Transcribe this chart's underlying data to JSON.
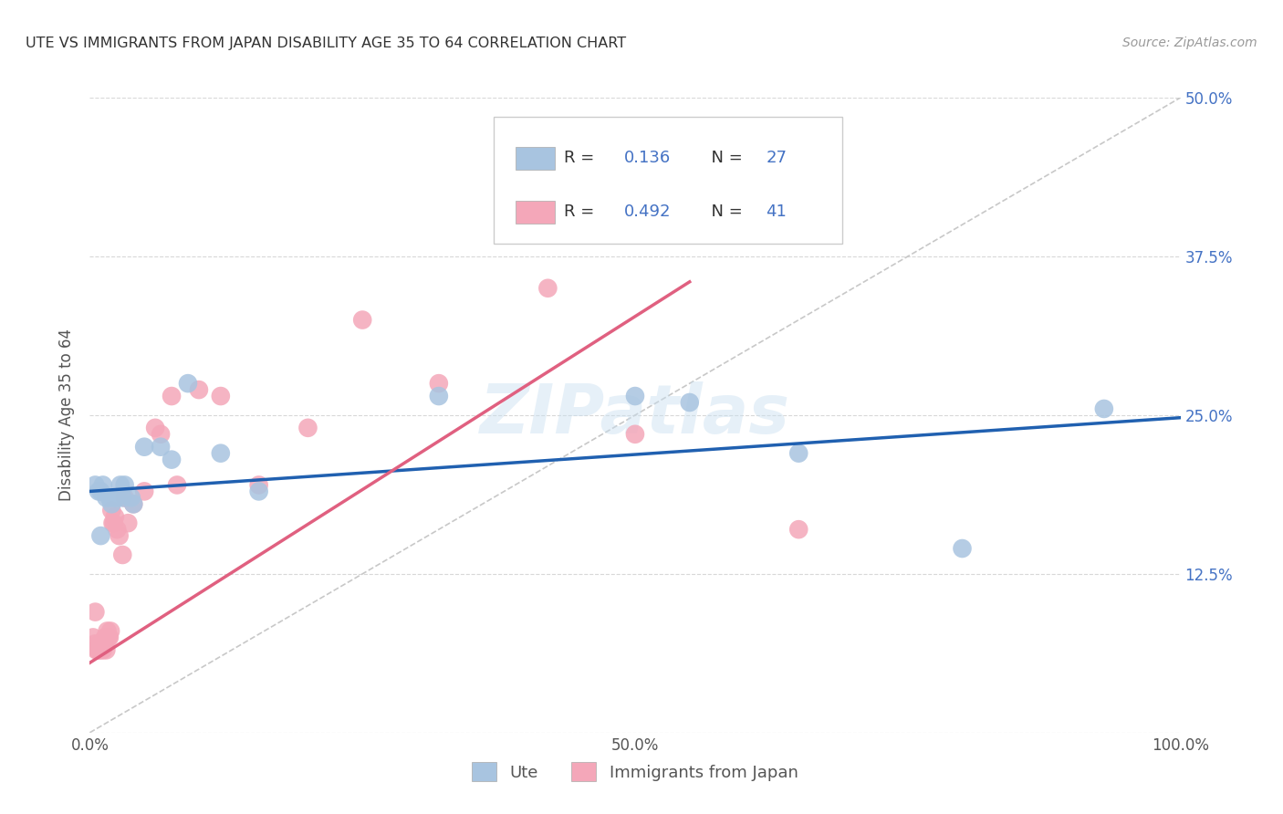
{
  "title": "UTE VS IMMIGRANTS FROM JAPAN DISABILITY AGE 35 TO 64 CORRELATION CHART",
  "source": "Source: ZipAtlas.com",
  "ylabel": "Disability Age 35 to 64",
  "xlim": [
    0.0,
    1.0
  ],
  "ylim": [
    0.0,
    0.5
  ],
  "ytick_positions": [
    0.0,
    0.125,
    0.25,
    0.375,
    0.5
  ],
  "ytick_labels": [
    "",
    "12.5%",
    "25.0%",
    "37.5%",
    "50.0%"
  ],
  "xtick_positions": [
    0.0,
    0.5,
    1.0
  ],
  "xtick_labels": [
    "0.0%",
    "50.0%",
    "100.0%"
  ],
  "legend_labels": [
    "Ute",
    "Immigrants from Japan"
  ],
  "ute_color": "#a8c4e0",
  "japan_color": "#f4a7b9",
  "ute_line_color": "#2060b0",
  "japan_line_color": "#e06080",
  "diagonal_color": "#c8c8c8",
  "R_ute": 0.136,
  "N_ute": 27,
  "R_japan": 0.492,
  "N_japan": 41,
  "watermark": "ZIPatlas",
  "ute_line_x0": 0.0,
  "ute_line_y0": 0.19,
  "ute_line_x1": 1.0,
  "ute_line_y1": 0.248,
  "japan_line_x0": 0.0,
  "japan_line_y0": 0.055,
  "japan_line_x1": 0.55,
  "japan_line_y1": 0.355,
  "ute_scatter_x": [
    0.005,
    0.008,
    0.01,
    0.012,
    0.015,
    0.018,
    0.022,
    0.025,
    0.028,
    0.032,
    0.038,
    0.05,
    0.065,
    0.075,
    0.09,
    0.12,
    0.155,
    0.32,
    0.5,
    0.55,
    0.65,
    0.8,
    0.93,
    0.03,
    0.02,
    0.04,
    0.01
  ],
  "ute_scatter_y": [
    0.195,
    0.19,
    0.19,
    0.195,
    0.185,
    0.185,
    0.185,
    0.185,
    0.195,
    0.195,
    0.185,
    0.225,
    0.225,
    0.215,
    0.275,
    0.22,
    0.19,
    0.265,
    0.265,
    0.26,
    0.22,
    0.145,
    0.255,
    0.185,
    0.18,
    0.18,
    0.155
  ],
  "japan_scatter_x": [
    0.003,
    0.005,
    0.006,
    0.007,
    0.008,
    0.009,
    0.01,
    0.011,
    0.012,
    0.013,
    0.014,
    0.015,
    0.016,
    0.017,
    0.018,
    0.019,
    0.02,
    0.021,
    0.022,
    0.023,
    0.025,
    0.027,
    0.03,
    0.032,
    0.035,
    0.04,
    0.05,
    0.06,
    0.065,
    0.075,
    0.08,
    0.1,
    0.12,
    0.155,
    0.2,
    0.25,
    0.32,
    0.42,
    0.5,
    0.65,
    0.005
  ],
  "japan_scatter_y": [
    0.075,
    0.07,
    0.065,
    0.065,
    0.065,
    0.07,
    0.065,
    0.07,
    0.065,
    0.07,
    0.075,
    0.065,
    0.08,
    0.075,
    0.075,
    0.08,
    0.175,
    0.165,
    0.165,
    0.17,
    0.16,
    0.155,
    0.14,
    0.185,
    0.165,
    0.18,
    0.19,
    0.24,
    0.235,
    0.265,
    0.195,
    0.27,
    0.265,
    0.195,
    0.24,
    0.325,
    0.275,
    0.35,
    0.235,
    0.16,
    0.095
  ]
}
